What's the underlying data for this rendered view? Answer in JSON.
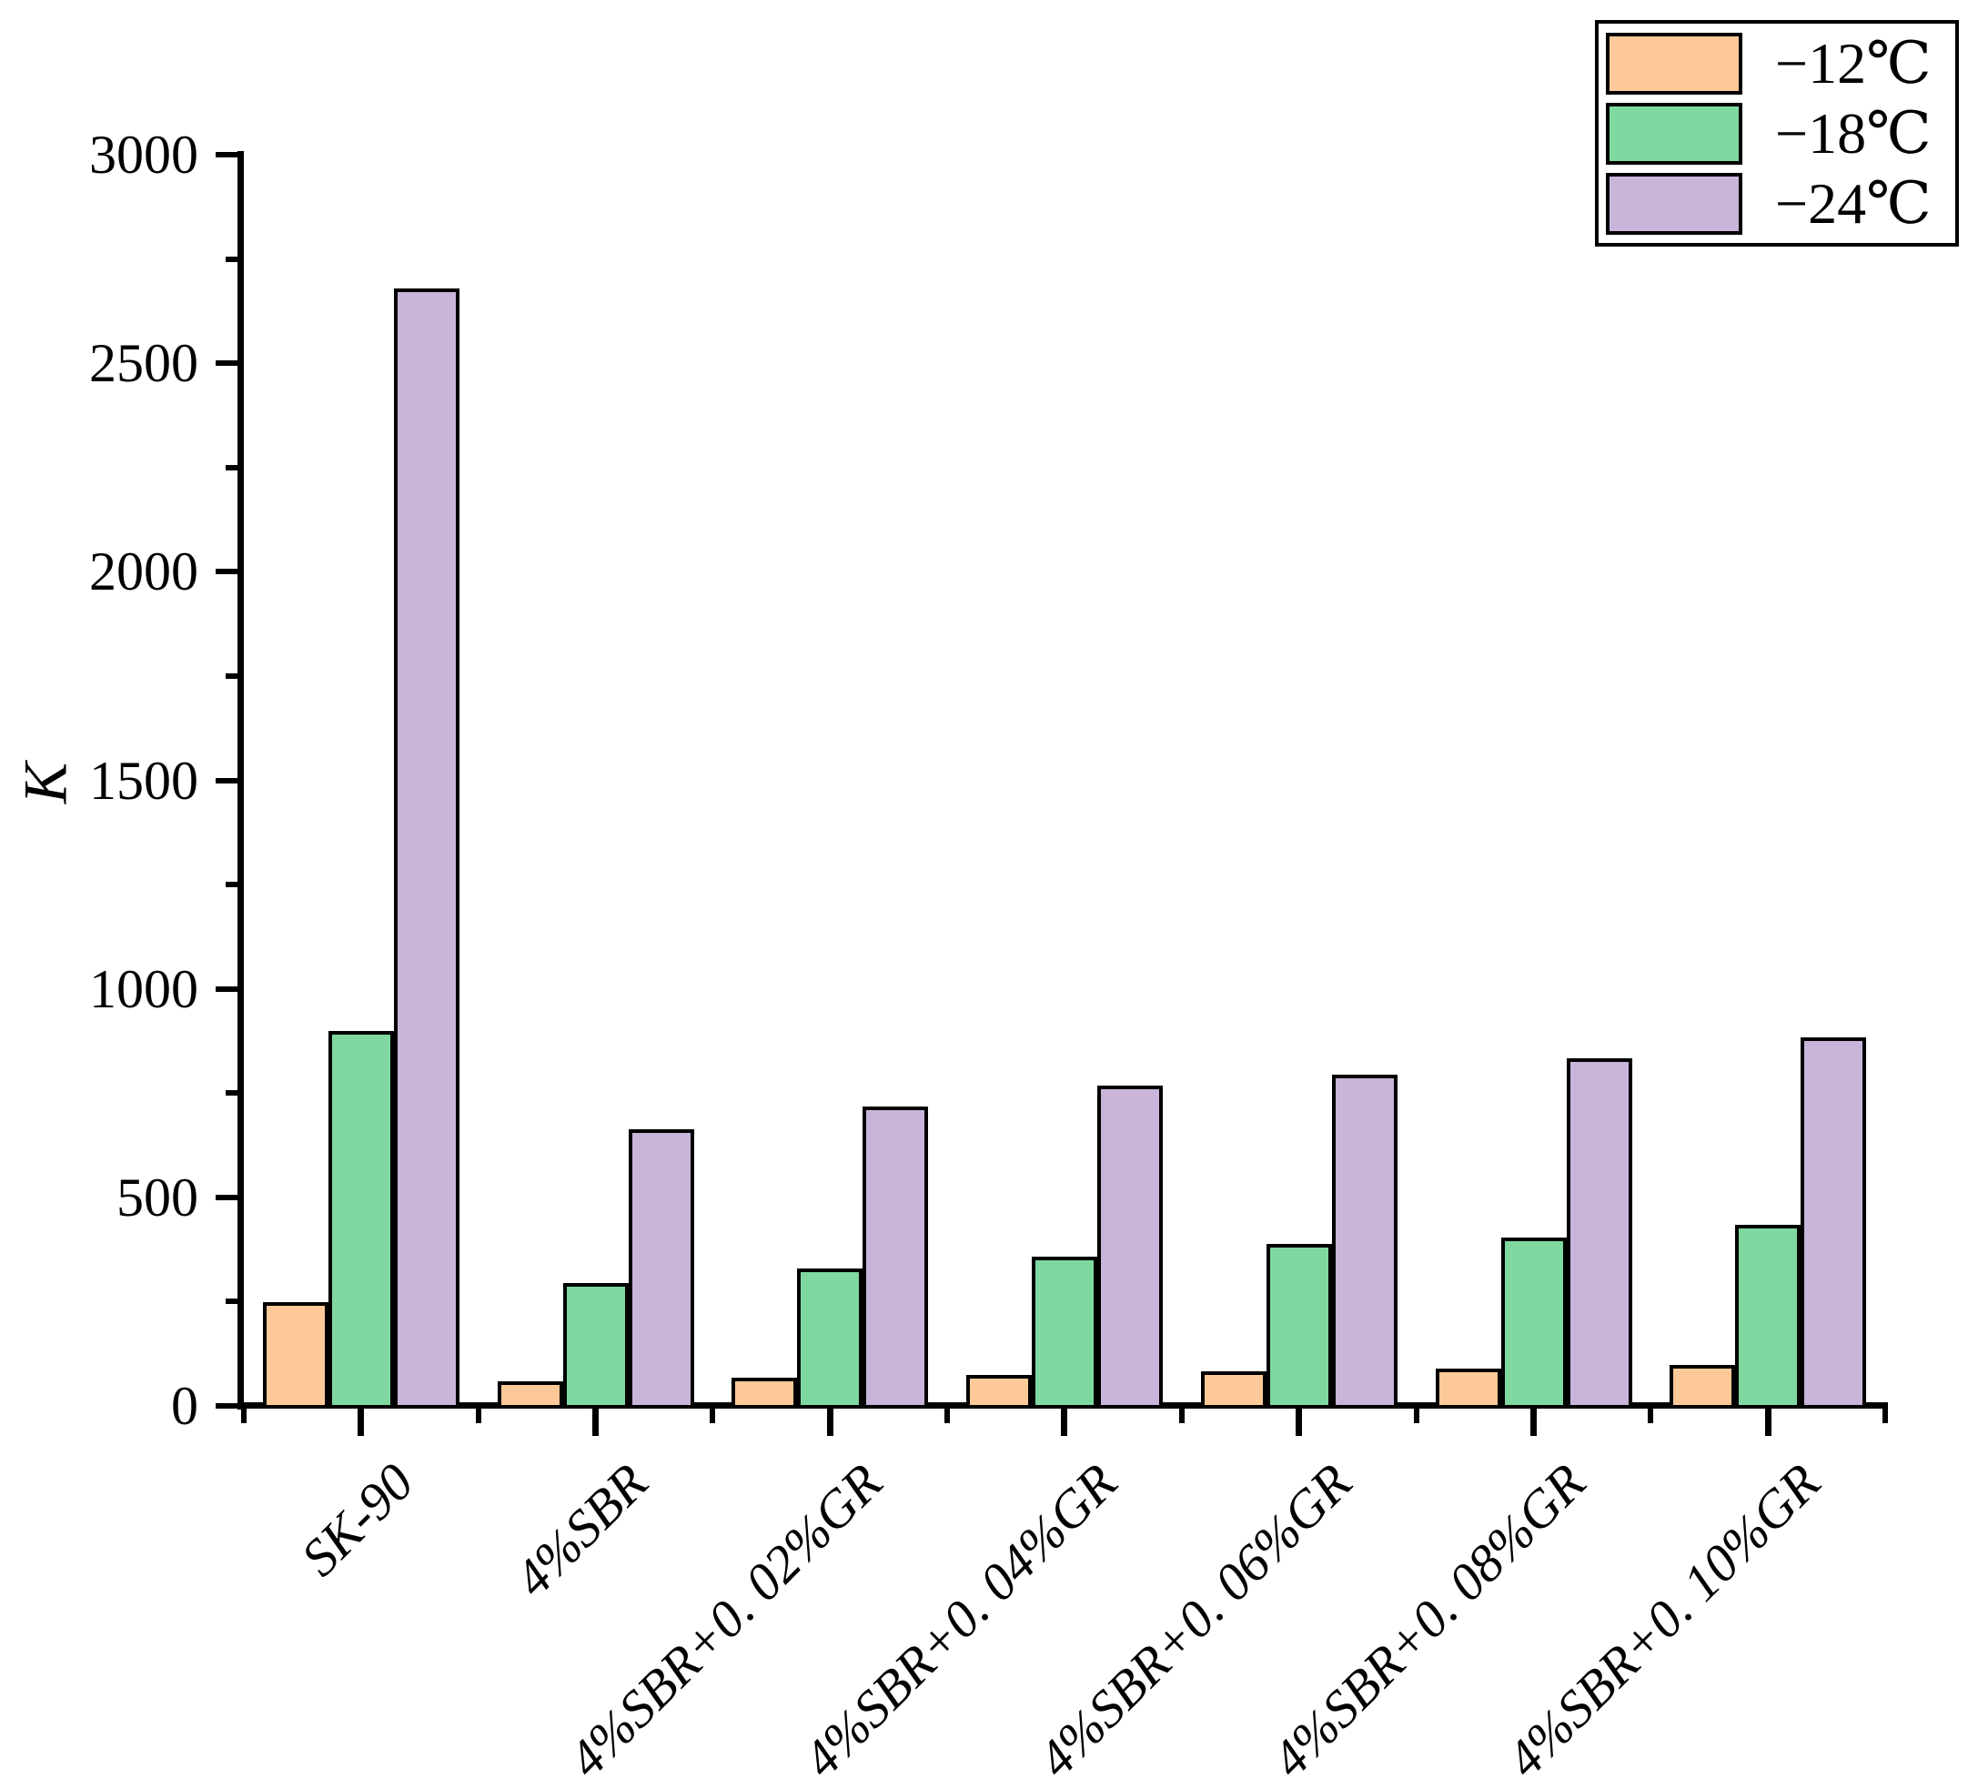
{
  "chart_data": {
    "type": "bar",
    "title": "",
    "xlabel": "",
    "ylabel": "K",
    "ylim": [
      0,
      3000
    ],
    "ytick_step": 500,
    "ytick_minor_step": 250,
    "yticks": [
      "0",
      "500",
      "1000",
      "1500",
      "2000",
      "2500",
      "3000"
    ],
    "grid": false,
    "legend_position": "top-right",
    "bar_edge_color": "#000000",
    "categories": [
      "SK-90",
      "4%SBR",
      "4%SBR+0. 02%GR",
      "4%SBR+0. 04%GR",
      "4%SBR+0. 06%GR",
      "4%SBR+0. 08%GR",
      "4%SBR+0. 10%GR"
    ],
    "series": [
      {
        "name": "−12℃",
        "color": "#FEC998",
        "values": [
          255,
          65,
          75,
          80,
          90,
          95,
          105
        ]
      },
      {
        "name": "−18℃",
        "color": "#7FD8A0",
        "values": [
          905,
          300,
          335,
          365,
          395,
          410,
          440
        ]
      },
      {
        "name": "−24℃",
        "color": "#C9B4DA",
        "values": [
          2685,
          670,
          725,
          775,
          800,
          840,
          890
        ]
      }
    ]
  }
}
